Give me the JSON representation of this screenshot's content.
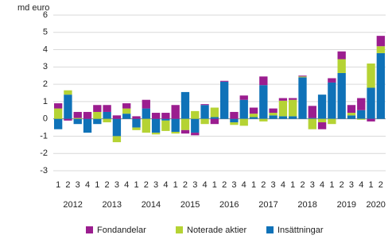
{
  "chart_data": {
    "type": "stacked-bar",
    "y_label": "md euro",
    "categories": [
      "1",
      "2",
      "3",
      "4",
      "1",
      "2",
      "3",
      "4",
      "1",
      "2",
      "3",
      "4",
      "1",
      "2",
      "3",
      "4",
      "1",
      "2",
      "3",
      "4",
      "1",
      "2",
      "3",
      "4",
      "1",
      "2",
      "3",
      "4",
      "1",
      "2",
      "3",
      "4",
      "1",
      "2"
    ],
    "years": [
      "2012",
      "2013",
      "2014",
      "2015",
      "2016",
      "2017",
      "2018",
      "2019",
      "2020"
    ],
    "ylim": [
      -3,
      6
    ],
    "yticks": [
      -3,
      -2,
      -1,
      0,
      1,
      2,
      3,
      4,
      5,
      6
    ],
    "grid": true,
    "series": [
      {
        "name": "Insättningar",
        "color": "#0f72b8",
        "values": [
          -0.6,
          1.4,
          -0.3,
          -0.8,
          -0.3,
          0.4,
          -1.0,
          0.3,
          -0.5,
          0.6,
          -0.8,
          -0.1,
          -0.75,
          1.55,
          -0.8,
          0.8,
          0.1,
          2.15,
          -0.2,
          1.1,
          0.1,
          1.95,
          0.2,
          0.15,
          0.15,
          2.4,
          0.05,
          1.4,
          2.1,
          2.65,
          0.2,
          0.5,
          1.8,
          3.8
        ]
      },
      {
        "name": "Noterade aktier",
        "color": "#b5d334",
        "values": [
          0.6,
          0.25,
          0.05,
          0,
          0.4,
          -0.2,
          -0.35,
          0.3,
          -0.15,
          -0.8,
          -0.1,
          -0.6,
          -0.1,
          -0.65,
          0.45,
          -0.3,
          0.55,
          0,
          -0.15,
          -0.4,
          0.2,
          -0.15,
          0.15,
          0.9,
          0.95,
          0.05,
          -0.6,
          -0.2,
          -0.3,
          0.8,
          0.15,
          -0.05,
          1.4,
          0.4
        ]
      },
      {
        "name": "Fondandelar",
        "color": "#9b1d8f",
        "values": [
          0.3,
          -0.1,
          0.35,
          0.4,
          0.4,
          0.4,
          0.2,
          0.3,
          0.15,
          0.5,
          0.35,
          0.35,
          0.8,
          -0.2,
          -0.15,
          0.05,
          -0.3,
          0.05,
          0.4,
          0.25,
          0.35,
          0.5,
          0.25,
          0.15,
          0.1,
          0.05,
          0.7,
          -0.4,
          0.25,
          0.45,
          0.45,
          0.7,
          -0.15,
          0.6
        ]
      }
    ],
    "legend_order": [
      "Fondandelar",
      "Noterade aktier",
      "Insättningar"
    ]
  }
}
